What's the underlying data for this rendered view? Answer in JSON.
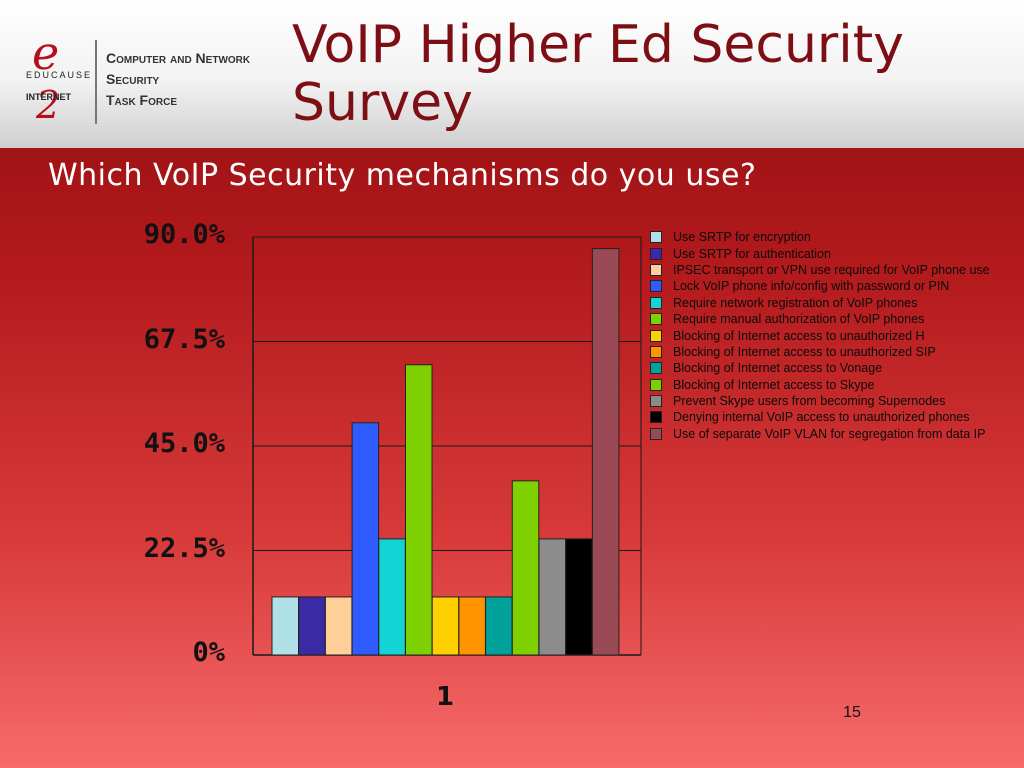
{
  "logo": {
    "e_mark": "e",
    "educause": "EDUCAUSE",
    "internet": "INTERNET",
    "two_mark": "2",
    "line1": "Computer and Network",
    "line2": "Security",
    "line3": "Task Force"
  },
  "slide": {
    "title_line1": "VoIP Higher Ed Security",
    "title_line2": "Survey",
    "question": "Which VoIP Security mechanisms do you use?",
    "page_number": "15"
  },
  "chart_data": {
    "type": "bar",
    "categories": [
      "1"
    ],
    "ylim": [
      0,
      90
    ],
    "yticks": [
      "90.0%",
      "67.5%",
      "45.0%",
      "22.5%",
      "0%"
    ],
    "ytick_values": [
      90,
      67.5,
      45,
      22.5,
      0
    ],
    "series": [
      {
        "name": "Use SRTP for encryption",
        "value": 12.5,
        "color": "#b0e0e8"
      },
      {
        "name": "Use SRTP for authentication",
        "value": 12.5,
        "color": "#3a2aa6"
      },
      {
        "name": "IPSEC transport or VPN use required for VoIP phone use",
        "value": 12.5,
        "color": "#ffcf99"
      },
      {
        "name": "Lock VoIP phone info/config with password or PIN",
        "value": 50,
        "color": "#2f5cff"
      },
      {
        "name": "Require network registration of VoIP phones",
        "value": 25,
        "color": "#12d4d4"
      },
      {
        "name": "Require manual authorization of VoIP phones",
        "value": 62.5,
        "color": "#7ed000"
      },
      {
        "name": "Blocking of Internet access to unauthorized H",
        "value": 12.5,
        "color": "#ffd000"
      },
      {
        "name": "Blocking of Internet access to unauthorized SIP",
        "value": 12.5,
        "color": "#ff9400"
      },
      {
        "name": "Blocking of Internet access to Vonage",
        "value": 12.5,
        "color": "#00a29a"
      },
      {
        "name": "Blocking of Internet access to Skype",
        "value": 37.5,
        "color": "#7ed000"
      },
      {
        "name": "Prevent Skype users from becoming Supernodes",
        "value": 25,
        "color": "#8c8c8c"
      },
      {
        "name": "Denying internal VoIP access to unauthorized phones",
        "value": 25,
        "color": "#000000"
      },
      {
        "name": "Use of separate VoIP VLAN for segregation from data IP",
        "value": 87.5,
        "color": "#9a4a55"
      }
    ]
  }
}
